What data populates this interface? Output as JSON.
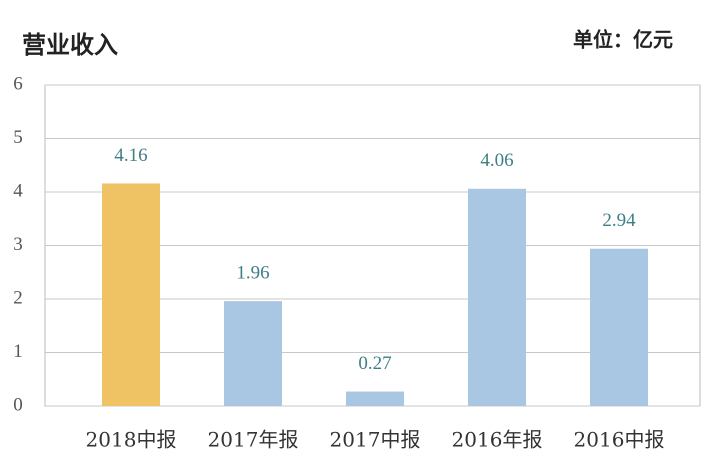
{
  "chart_data": {
    "type": "bar",
    "title": "营业收入",
    "unit_label": "单位：亿元",
    "categories": [
      "2018中报",
      "2017年报",
      "2017中报",
      "2016年报",
      "2016中报"
    ],
    "values": [
      4.16,
      1.96,
      0.27,
      4.06,
      2.94
    ],
    "colors": [
      "#efc363",
      "#a9c6e2",
      "#a9c6e2",
      "#a9c6e2",
      "#a9c6e2"
    ],
    "ylim": [
      0,
      6
    ],
    "yticks": [
      0,
      1,
      2,
      3,
      4,
      5,
      6
    ],
    "grid": true
  }
}
